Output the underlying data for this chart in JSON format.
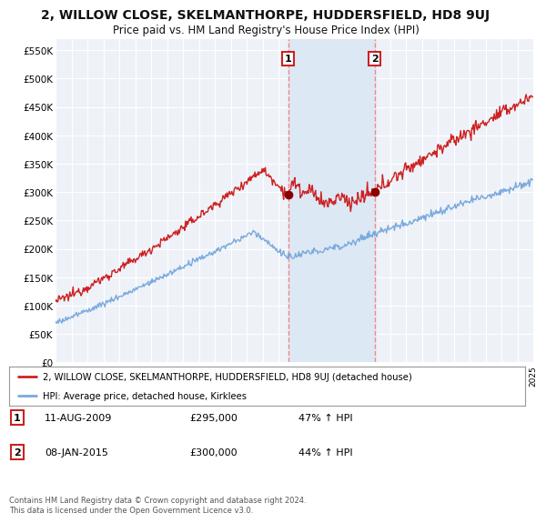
{
  "title": "2, WILLOW CLOSE, SKELMANTHORPE, HUDDERSFIELD, HD8 9UJ",
  "subtitle": "Price paid vs. HM Land Registry's House Price Index (HPI)",
  "title_fontsize": 10,
  "subtitle_fontsize": 8.5,
  "ylabel_ticks": [
    "£0",
    "£50K",
    "£100K",
    "£150K",
    "£200K",
    "£250K",
    "£300K",
    "£350K",
    "£400K",
    "£450K",
    "£500K",
    "£550K"
  ],
  "ytick_values": [
    0,
    50000,
    100000,
    150000,
    200000,
    250000,
    300000,
    350000,
    400000,
    450000,
    500000,
    550000
  ],
  "ylim": [
    0,
    570000
  ],
  "background_color": "#ffffff",
  "plot_bg_color": "#eef2f8",
  "grid_color": "#ffffff",
  "red_color": "#cc2222",
  "blue_color": "#7aaadd",
  "dashed_line_color": "#ee8888",
  "span_color": "#dde8f5",
  "point1_x": 2009.6,
  "point1_y": 295000,
  "point2_x": 2015.03,
  "point2_y": 300000,
  "legend_text1": "2, WILLOW CLOSE, SKELMANTHORPE, HUDDERSFIELD, HD8 9UJ (detached house)",
  "legend_text2": "HPI: Average price, detached house, Kirklees",
  "table_row1": [
    "1",
    "11-AUG-2009",
    "£295,000",
    "47% ↑ HPI"
  ],
  "table_row2": [
    "2",
    "08-JAN-2015",
    "£300,000",
    "44% ↑ HPI"
  ],
  "footer_text": "Contains HM Land Registry data © Crown copyright and database right 2024.\nThis data is licensed under the Open Government Licence v3.0.",
  "xmin": 1995,
  "xmax": 2025
}
